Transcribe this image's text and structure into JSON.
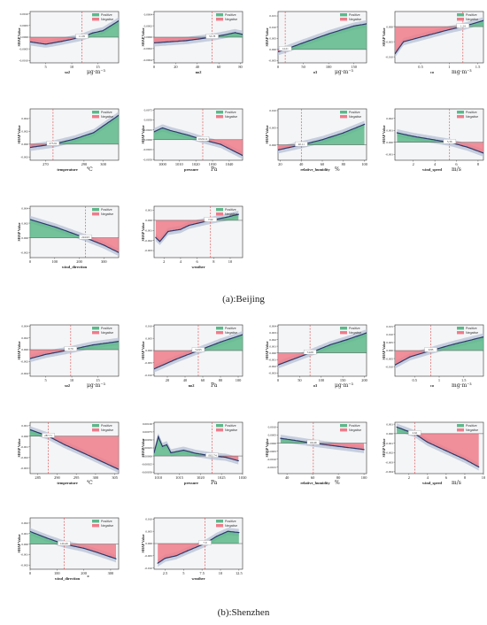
{
  "captions": {
    "beijing": "(a):Beijing",
    "shenzhen": "(b):Shenzhen"
  },
  "legend": {
    "positive": "Positive",
    "negative": "Negative"
  },
  "ylabel": "SHAP Value",
  "colors": {
    "positive": "#5cb88a",
    "negative": "#ef7b8a",
    "line": "#2b3a6b",
    "band": "#b7c0d6",
    "threshold": "#e05a5a",
    "frame_bg": "#f4f5f7"
  },
  "chart_data": [
    {
      "type": "line",
      "section": "Beijing",
      "xlabel": "so2",
      "unit": "μg·m⁻³",
      "threshold": "11.95",
      "tv": 11.95,
      "xlim": [
        2,
        19
      ],
      "ylim": [
        -0.0011,
        0.0011
      ],
      "xticks": [
        5,
        10,
        15
      ],
      "yticks": [
        -0.001,
        -0.0005,
        0,
        0.0005,
        0.001
      ],
      "ytl": [
        "-0.0010",
        "-0.0005",
        "0.0000",
        "0.0005",
        "0.0010"
      ],
      "x": [
        2,
        5,
        8,
        11.95,
        14,
        16,
        19
      ],
      "y": [
        -0.0002,
        -0.0003,
        -0.00018,
        0,
        0.00018,
        0.00028,
        0.0007
      ]
    },
    {
      "type": "line",
      "section": "Beijing",
      "xlabel": "no2",
      "unit": "",
      "threshold": "53.78",
      "tv": 53.78,
      "xlim": [
        0,
        82
      ],
      "ylim": [
        -0.00045,
        0.00045
      ],
      "xticks": [
        0,
        20,
        40,
        60,
        80
      ],
      "yticks": [
        -0.0004,
        -0.0002,
        0,
        0.0002,
        0.0004
      ],
      "ytl": [
        "-0.0004",
        "-0.0002",
        "0.0000",
        "0.0002",
        "0.0004"
      ],
      "x": [
        0,
        15,
        30,
        53.78,
        65,
        75,
        82
      ],
      "y": [
        -0.0001,
        -8e-05,
        -6e-05,
        0,
        4e-05,
        8e-05,
        5e-05
      ]
    },
    {
      "type": "line",
      "section": "Beijing",
      "xlabel": "o3",
      "unit": "μg·m⁻³",
      "threshold": "14.21",
      "tv": 14.21,
      "xlim": [
        0,
        175
      ],
      "ylim": [
        -0.006,
        0.017
      ],
      "xticks": [
        0,
        50,
        100,
        150
      ],
      "yticks": [
        -0.005,
        0,
        0.005,
        0.01,
        0.015
      ],
      "ytl": [
        "-0.005",
        "0.000",
        "0.005",
        "0.010",
        "0.015"
      ],
      "x": [
        0,
        14.21,
        50,
        100,
        150,
        175
      ],
      "y": [
        -0.001,
        0,
        0.003,
        0.007,
        0.0105,
        0.0115
      ]
    },
    {
      "type": "line",
      "section": "Beijing",
      "xlabel": "co",
      "unit": "mg·m⁻³",
      "threshold": "1.24",
      "tv": 1.24,
      "xlim": [
        0.05,
        1.6
      ],
      "ylim": [
        -0.012,
        0.005
      ],
      "xticks": [
        0.5,
        1.0,
        1.5
      ],
      "yticks": [
        -0.01,
        -0.005,
        0
      ],
      "ytl": [
        "-0.010",
        "-0.005",
        "0.000"
      ],
      "x": [
        0.05,
        0.2,
        0.5,
        0.8,
        1.0,
        1.24,
        1.6
      ],
      "y": [
        -0.009,
        -0.005,
        -0.0035,
        -0.002,
        -0.001,
        0,
        0.002
      ]
    },
    {
      "type": "line",
      "section": "Beijing",
      "xlabel": "temperature",
      "unit": "℃",
      "threshold": "273.91",
      "tv": 273.91,
      "xlim": [
        262,
        308
      ],
      "ylim": [
        -0.0025,
        0.0055
      ],
      "xticks": [
        270,
        290,
        300
      ],
      "yticks": [
        -0.002,
        0,
        0.002,
        0.004
      ],
      "ytl": [
        "-0.002",
        "0.000",
        "0.002",
        "0.004"
      ],
      "x": [
        262,
        273.91,
        285,
        295,
        308
      ],
      "y": [
        -0.0005,
        0,
        0.0008,
        0.0018,
        0.0045
      ]
    },
    {
      "type": "line",
      "section": "Beijing",
      "xlabel": "pressure",
      "unit": "Pa",
      "threshold": "1024.14",
      "tv": 1024.14,
      "xlim": [
        995,
        1048
      ],
      "ylim": [
        -0.0052,
        0.0078
      ],
      "xticks": [
        1000,
        1010,
        1020,
        1030,
        1040
      ],
      "yticks": [
        -0.005,
        -0.0025,
        0,
        0.0025,
        0.005,
        0.0075
      ],
      "ytl": [
        "-0.0050",
        "-0.0025",
        "0.0000",
        "0.0025",
        "0.0050",
        "0.0075"
      ],
      "x": [
        995,
        1000,
        1005,
        1015,
        1024.14,
        1035,
        1048
      ],
      "y": [
        0.002,
        0.003,
        0.0023,
        0.0012,
        0,
        -0.0012,
        -0.004
      ]
    },
    {
      "type": "line",
      "section": "Beijing",
      "xlabel": "relative_humidity",
      "unit": "%",
      "threshold": "40.11",
      "tv": 40.11,
      "xlim": [
        18,
        102
      ],
      "ylim": [
        -0.0045,
        0.0105
      ],
      "xticks": [
        20,
        40,
        60,
        80,
        100
      ],
      "yticks": [
        0,
        0.005,
        0.01
      ],
      "ytl": [
        "0.000",
        "0.005",
        "0.010"
      ],
      "x": [
        18,
        40.11,
        60,
        80,
        100
      ],
      "y": [
        -0.0015,
        0,
        0.0015,
        0.0035,
        0.006
      ]
    },
    {
      "type": "line",
      "section": "Beijing",
      "xlabel": "wind_speed",
      "unit": "m/s",
      "threshold": "5.36",
      "tv": 5.36,
      "xlim": [
        0.3,
        8.5
      ],
      "ylim": [
        -0.0015,
        0.0028
      ],
      "xticks": [
        2,
        4,
        6,
        8
      ],
      "yticks": [
        -0.001,
        0,
        0.001,
        0.002
      ],
      "ytl": [
        "-0.001",
        "0.000",
        "0.001",
        "0.002"
      ],
      "x": [
        0.5,
        2,
        4,
        5.36,
        7,
        8.5
      ],
      "y": [
        0.0008,
        0.0005,
        0.0002,
        0,
        -0.0004,
        -0.0009
      ]
    },
    {
      "type": "line",
      "section": "Beijing",
      "xlabel": "wind_direction",
      "unit": "",
      "threshold": "224.93",
      "tv": 224.93,
      "xlim": [
        0,
        360
      ],
      "ylim": [
        -0.0027,
        0.0043
      ],
      "xticks": [
        0,
        100,
        200,
        300
      ],
      "yticks": [
        -0.002,
        0,
        0.002,
        0.004
      ],
      "ytl": [
        "-0.002",
        "0.000",
        "0.002",
        "0.004"
      ],
      "x": [
        0,
        100,
        224.93,
        300,
        360
      ],
      "y": [
        0.0025,
        0.0015,
        0,
        -0.001,
        -0.002
      ]
    },
    {
      "type": "line",
      "section": "Beijing",
      "xlabel": "weather",
      "unit": "",
      "threshold": "7.62",
      "tv": 7.62,
      "xlim": [
        0.8,
        11.5
      ],
      "ylim": [
        -0.0037,
        0.0014
      ],
      "xticks": [
        2,
        4,
        6,
        8,
        10
      ],
      "yticks": [
        -0.003,
        -0.002,
        -0.001,
        0,
        0.001
      ],
      "ytl": [
        "-0.003",
        "-0.002",
        "-0.001",
        "0.000",
        "0.001"
      ],
      "x": [
        1,
        1.5,
        2.5,
        4,
        5,
        6,
        7.62,
        9.5,
        11
      ],
      "y": [
        -0.0017,
        -0.0021,
        -0.0011,
        -0.0009,
        -0.0005,
        -0.0003,
        0,
        0.0003,
        0.0006
      ]
    },
    {
      "type": "line",
      "section": "Shenzhen",
      "xlabel": "so2",
      "unit": "μg·m⁻³",
      "threshold": "9.79",
      "tv": 9.79,
      "xlim": [
        2,
        19
      ],
      "ylim": [
        -0.0045,
        0.0042
      ],
      "xticks": [
        5,
        10,
        15
      ],
      "yticks": [
        -0.004,
        -0.002,
        0,
        0.002,
        0.004
      ],
      "ytl": [
        "-0.004",
        "-0.002",
        "0.000",
        "0.002",
        "0.004"
      ],
      "x": [
        2,
        5,
        9.79,
        14,
        19
      ],
      "y": [
        -0.0015,
        -0.0008,
        0,
        0.0008,
        0.0014
      ]
    },
    {
      "type": "line",
      "section": "Shenzhen",
      "xlabel": "no2",
      "unit": "Pa",
      "threshold": "54.95",
      "tv": 54.95,
      "xlim": [
        5,
        105
      ],
      "ylim": [
        -0.0105,
        0.0105
      ],
      "xticks": [
        20,
        40,
        60,
        80,
        100
      ],
      "yticks": [
        -0.01,
        -0.005,
        0,
        0.005,
        0.01
      ],
      "ytl": [
        "-0.010",
        "-0.005",
        "0.000",
        "0.005",
        "0.010"
      ],
      "x": [
        5,
        30,
        54.95,
        80,
        105
      ],
      "y": [
        -0.0075,
        -0.0035,
        0,
        0.0035,
        0.0065
      ]
    },
    {
      "type": "line",
      "section": "Shenzhen",
      "xlabel": "o3",
      "unit": "μg·m⁻³",
      "threshold": "74.08",
      "tv": 74.08,
      "xlim": [
        0,
        205
      ],
      "ylim": [
        -0.0035,
        0.0042
      ],
      "xticks": [
        0,
        50,
        100,
        150,
        200
      ],
      "yticks": [
        -0.003,
        -0.002,
        -0.001,
        0,
        0.001,
        0.002,
        0.003,
        0.004
      ],
      "ytl": [
        "-0.003",
        "-0.002",
        "-0.001",
        "0.000",
        "0.001",
        "0.002",
        "0.003",
        "0.004"
      ],
      "x": [
        0,
        74.08,
        120,
        160,
        205
      ],
      "y": [
        -0.0018,
        0,
        0.0012,
        0.002,
        0.003
      ]
    },
    {
      "type": "line",
      "section": "Shenzhen",
      "xlabel": "co",
      "unit": "mg·m⁻³",
      "threshold": "0.83",
      "tv": 0.83,
      "xlim": [
        0.1,
        1.9
      ],
      "ylim": [
        -0.016,
        0.016
      ],
      "xticks": [
        0.5,
        1.0,
        1.5
      ],
      "yticks": [
        -0.01,
        -0.005,
        0,
        0.005,
        0.01,
        0.015
      ],
      "ytl": [
        "-0.010",
        "-0.005",
        "0.000",
        "0.005",
        "0.010",
        "0.015"
      ],
      "x": [
        0.1,
        0.4,
        0.83,
        1.3,
        1.9
      ],
      "y": [
        -0.009,
        -0.004,
        0,
        0.004,
        0.0085
      ]
    },
    {
      "type": "line",
      "section": "Shenzhen",
      "xlabel": "temperature",
      "unit": "℃",
      "threshold": "287.71",
      "tv": 287.71,
      "xlim": [
        283,
        306
      ],
      "ylim": [
        -0.0035,
        0.0013
      ],
      "xticks": [
        285,
        290,
        295,
        300,
        305
      ],
      "yticks": [
        -0.003,
        -0.002,
        -0.001,
        0,
        0.001
      ],
      "ytl": [
        "-0.003",
        "-0.002",
        "-0.001",
        "0.000",
        "0.001"
      ],
      "x": [
        283,
        287.71,
        292,
        297,
        306
      ],
      "y": [
        0.0006,
        0,
        -0.0008,
        -0.0016,
        -0.0031
      ]
    },
    {
      "type": "line",
      "section": "Shenzhen",
      "xlabel": "pressure",
      "unit": "Pa",
      "threshold": "1022.74",
      "tv": 1022.74,
      "xlim": [
        1009,
        1030
      ],
      "ylim": [
        -0.00055,
        0.00105
      ],
      "xticks": [
        1010,
        1015,
        1020,
        1025,
        1030
      ],
      "yticks": [
        -0.0005,
        -0.00025,
        0,
        0.00025,
        0.0005,
        0.00075,
        0.001
      ],
      "ytl": [
        "-0.00050",
        "-0.00025",
        "0.00000",
        "0.00025",
        "0.00050",
        "0.00075",
        "0.00100"
      ],
      "x": [
        1009,
        1010,
        1011,
        1012,
        1013,
        1016,
        1019,
        1022.74,
        1026,
        1029
      ],
      "y": [
        0.0001,
        0.0006,
        0.0003,
        0.00035,
        0.0001,
        0.00018,
        8e-05,
        0,
        -4e-05,
        -0.00015
      ]
    },
    {
      "type": "line",
      "section": "Shenzhen",
      "xlabel": "relative_humidity",
      "unit": "%",
      "threshold": "60.49",
      "tv": 60.49,
      "xlim": [
        33,
        102
      ],
      "ylim": [
        -0.0019,
        0.0013
      ],
      "xticks": [
        40,
        60,
        80,
        100
      ],
      "yticks": [
        -0.0015,
        -0.001,
        -0.0005,
        0,
        0.0005,
        0.001
      ],
      "ytl": [
        "-0.0015",
        "-0.0010",
        "-0.0005",
        "0.0000",
        "0.0005",
        "0.0010"
      ],
      "x": [
        35,
        60.49,
        80,
        100
      ],
      "y": [
        0.0003,
        0,
        -0.0002,
        -0.0004
      ]
    },
    {
      "type": "line",
      "section": "Shenzhen",
      "xlabel": "wind_speed",
      "unit": "m/s",
      "threshold": "2.62",
      "tv": 2.62,
      "xlim": [
        0.5,
        10
      ],
      "ylim": [
        -0.0042,
        0.0012
      ],
      "xticks": [
        2,
        4,
        6,
        8,
        10
      ],
      "yticks": [
        -0.004,
        -0.003,
        -0.002,
        -0.001,
        0,
        0.001
      ],
      "ytl": [
        "-0.004",
        "-0.003",
        "-0.002",
        "-0.001",
        "0.000",
        "0.001"
      ],
      "x": [
        0.7,
        1.5,
        2.62,
        4,
        6,
        8,
        9.5
      ],
      "y": [
        0.0007,
        0.0004,
        0,
        -0.0009,
        -0.0018,
        -0.0027,
        -0.0035
      ]
    },
    {
      "type": "line",
      "section": "Shenzhen",
      "xlabel": "wind_direction",
      "unit": "°",
      "threshold": "126.49",
      "tv": 126.49,
      "xlim": [
        0,
        330
      ],
      "ylim": [
        -0.0024,
        0.0025
      ],
      "xticks": [
        0,
        100,
        200,
        300
      ],
      "yticks": [
        -0.002,
        -0.001,
        0,
        0.001,
        0.002
      ],
      "ytl": [
        "-0.002",
        "-0.001",
        "0.000",
        "0.001",
        "0.002"
      ],
      "x": [
        0,
        60,
        126.49,
        200,
        250,
        320
      ],
      "y": [
        0.0012,
        0.0006,
        0,
        -0.0004,
        -0.0008,
        -0.0014
      ]
    },
    {
      "type": "line",
      "section": "Shenzhen",
      "xlabel": "weather",
      "unit": "",
      "threshold": "7.9",
      "tv": 7.9,
      "xlim": [
        1,
        13
      ],
      "ylim": [
        -0.0105,
        0.0105
      ],
      "xticks": [
        2.5,
        5.0,
        7.5,
        10.0,
        12.5
      ],
      "yticks": [
        -0.01,
        -0.005,
        0,
        0.005,
        0.01
      ],
      "ytl": [
        "-0.010",
        "-0.005",
        "0.000",
        "0.005",
        "0.010"
      ],
      "x": [
        1.5,
        2.5,
        4,
        5.5,
        7.9,
        9.5,
        11,
        12.5
      ],
      "y": [
        -0.008,
        -0.006,
        -0.005,
        -0.003,
        0,
        0.003,
        0.005,
        0.0045
      ]
    }
  ]
}
